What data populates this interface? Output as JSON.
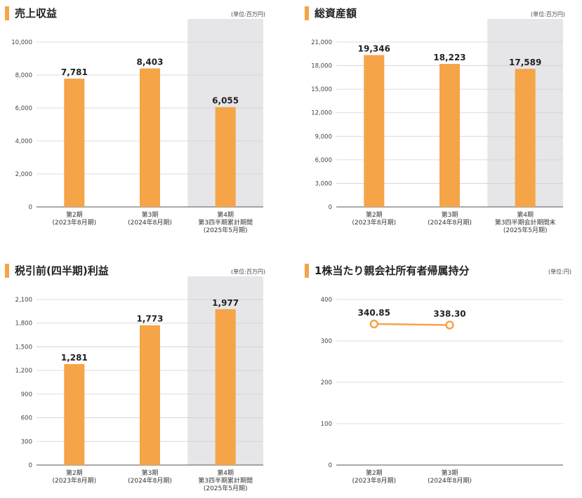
{
  "panels": [
    {
      "title": "売上収益",
      "unit": "(単位:百万円)",
      "chart_data": {
        "type": "bar",
        "categories": [
          [
            "第2期",
            "(2023年8月期)"
          ],
          [
            "第3期",
            "(2024年8月期)"
          ],
          [
            "第4期",
            "第3四半期累計期間",
            "(2025年5月期)"
          ]
        ],
        "values": [
          7781,
          8403,
          6055
        ],
        "value_labels": [
          "7,781",
          "8,403",
          "6,055"
        ],
        "ylim": [
          0,
          10000
        ],
        "yticks": [
          0,
          2000,
          4000,
          6000,
          8000,
          10000
        ],
        "ytick_labels": [
          "0",
          "2,000",
          "4,000",
          "6,000",
          "8,000",
          "10,000"
        ],
        "highlight_index": 2,
        "bar_color": "#f5a447",
        "highlight_color": "#e6e6e8"
      }
    },
    {
      "title": "総資産額",
      "unit": "(単位:百万円)",
      "chart_data": {
        "type": "bar",
        "categories": [
          [
            "第2期",
            "(2023年8月期)"
          ],
          [
            "第3期",
            "(2024年8月期)"
          ],
          [
            "第4期",
            "第3四半期会計期間末",
            "(2025年5月期)"
          ]
        ],
        "values": [
          19346,
          18223,
          17589
        ],
        "value_labels": [
          "19,346",
          "18,223",
          "17,589"
        ],
        "ylim": [
          0,
          21000
        ],
        "yticks": [
          0,
          3000,
          6000,
          9000,
          12000,
          15000,
          18000,
          21000
        ],
        "ytick_labels": [
          "0",
          "3,000",
          "6,000",
          "9,000",
          "12,000",
          "15,000",
          "18,000",
          "21,000"
        ],
        "highlight_index": 2,
        "bar_color": "#f5a447",
        "highlight_color": "#e6e6e8"
      }
    },
    {
      "title": "税引前(四半期)利益",
      "unit": "(単位:百万円)",
      "chart_data": {
        "type": "bar",
        "categories": [
          [
            "第2期",
            "(2023年8月期)"
          ],
          [
            "第3期",
            "(2024年8月期)"
          ],
          [
            "第4期",
            "第3四半期累計期間",
            "(2025年5月期)"
          ]
        ],
        "values": [
          1281,
          1773,
          1977
        ],
        "value_labels": [
          "1,281",
          "1,773",
          "1,977"
        ],
        "ylim": [
          0,
          2100
        ],
        "yticks": [
          0,
          300,
          600,
          900,
          1200,
          1500,
          1800,
          2100
        ],
        "ytick_labels": [
          "0",
          "300",
          "600",
          "900",
          "1,200",
          "1,500",
          "1,800",
          "2,100"
        ],
        "highlight_index": 2,
        "bar_color": "#f5a447",
        "highlight_color": "#e6e6e8"
      }
    },
    {
      "title": "1株当たり親会社所有者帰属持分",
      "unit": "(単位:円)",
      "chart_data": {
        "type": "line",
        "categories": [
          [
            "第2期",
            "(2023年8月期)"
          ],
          [
            "第3期",
            "(2024年8月期)"
          ]
        ],
        "values": [
          340.85,
          338.3
        ],
        "value_labels": [
          "340.85",
          "338.30"
        ],
        "ylim": [
          0,
          400
        ],
        "yticks": [
          0,
          100,
          200,
          300,
          400
        ],
        "ytick_labels": [
          "0",
          "100",
          "200",
          "300",
          "400"
        ],
        "n_slots": 3,
        "line_color": "#f5a447"
      }
    }
  ]
}
